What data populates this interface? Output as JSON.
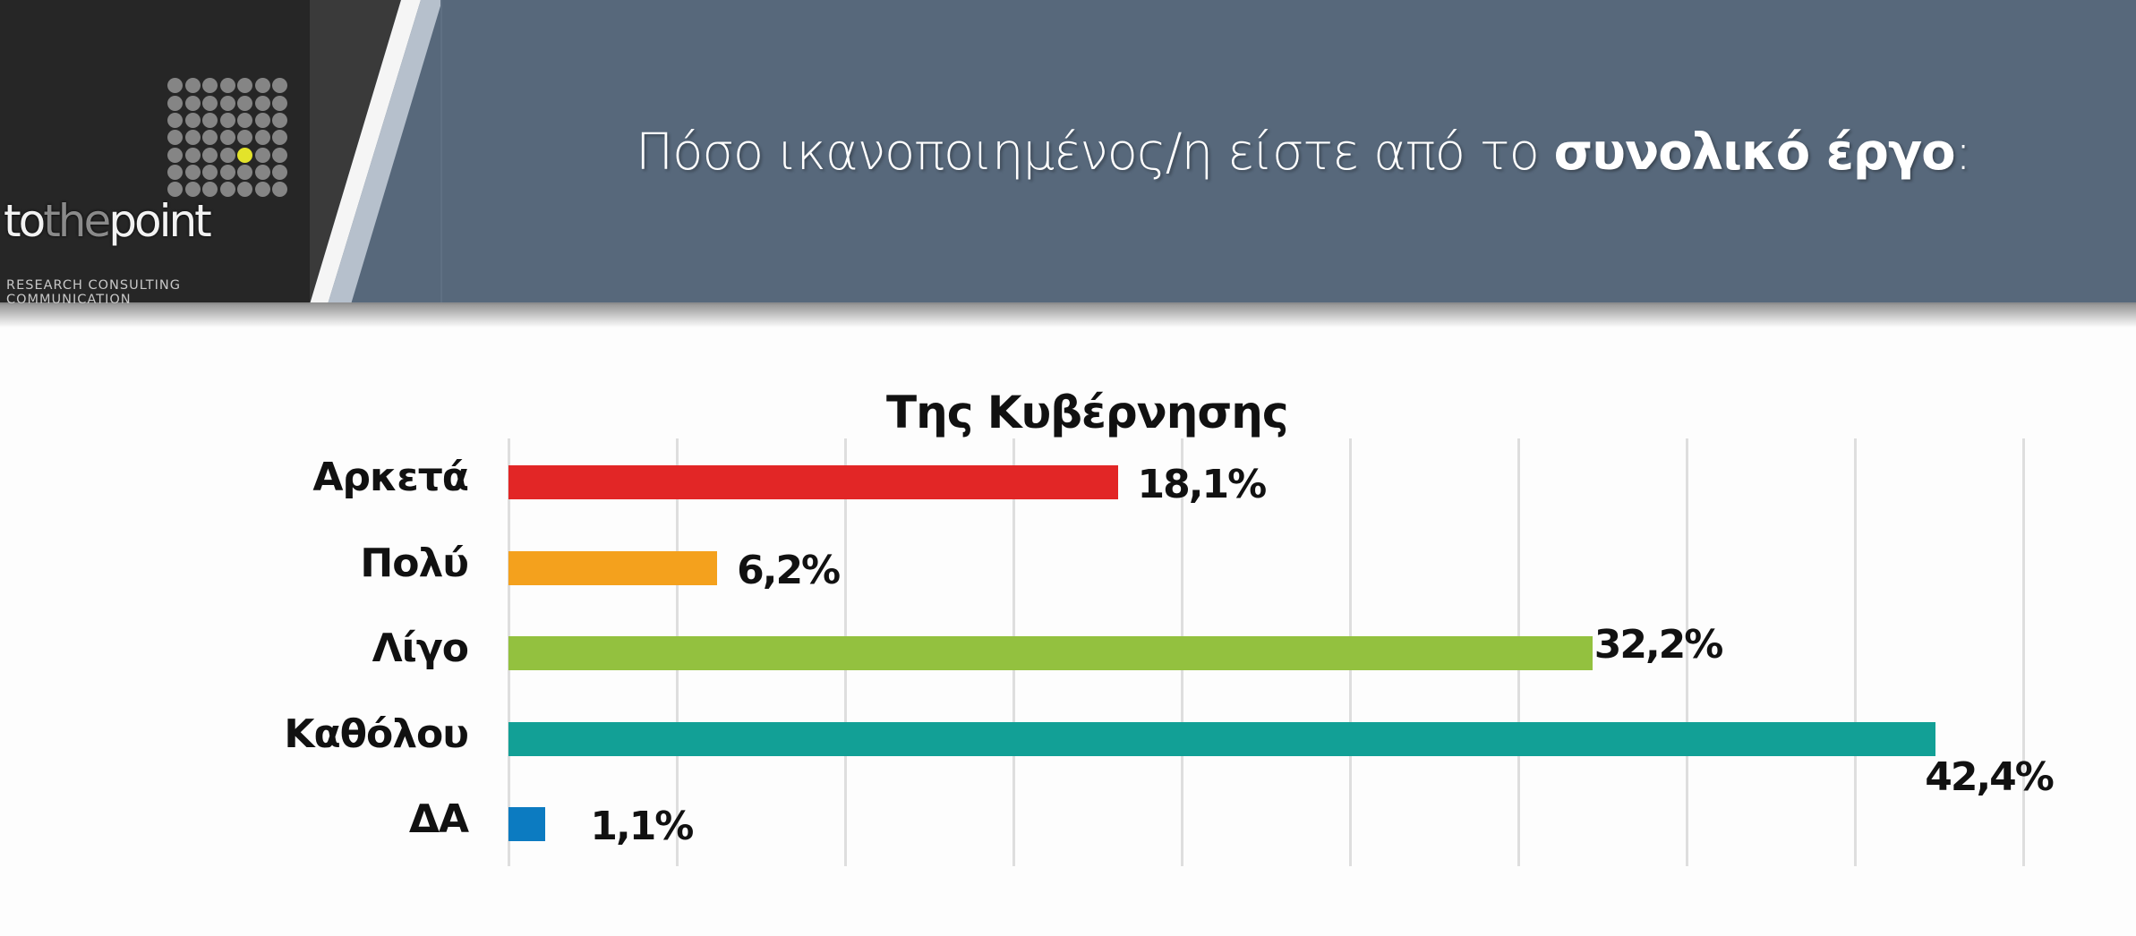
{
  "header": {
    "logo": {
      "brand_prefix": "to",
      "brand_mid": "the",
      "brand_suffix": "point",
      "tagline": "RESEARCH  CONSULTING  COMMUNICATION",
      "dot_grid": {
        "rows": 7,
        "cols": 7,
        "highlight": {
          "row": 4,
          "col": 4
        },
        "dot_color": "#858585",
        "highlight_color": "#e3e32a"
      }
    },
    "title_regular": "Πόσο ικανοποιημένος/η είστε από το ",
    "title_bold": "συνολικό έργο",
    "title_suffix": ":",
    "colors": {
      "logo_bg": "#262626",
      "panel_dark": "#3a3a3a",
      "stripe": "#b6c0cc",
      "banner": "#57687b"
    }
  },
  "chart_data": {
    "type": "bar",
    "orientation": "horizontal",
    "title": "Της Κυβέρνησης",
    "categories": [
      "Αρκετά",
      "Πολύ",
      "Λίγο",
      "Καθόλου",
      "ΔΑ"
    ],
    "values": [
      18.1,
      6.2,
      32.2,
      42.4,
      1.1
    ],
    "value_labels": [
      "18,1%",
      "6,2%",
      "32,2%",
      "42,4%",
      "1,1%"
    ],
    "colors": [
      "#e22626",
      "#f4a11d",
      "#93c13f",
      "#12a096",
      "#0c7bc1"
    ],
    "xlabel": "",
    "ylabel": "",
    "xlim": [
      0,
      45
    ],
    "grid": {
      "vertical": true,
      "step": 5
    },
    "legend": "none",
    "show_x_axis_ticks": false
  }
}
